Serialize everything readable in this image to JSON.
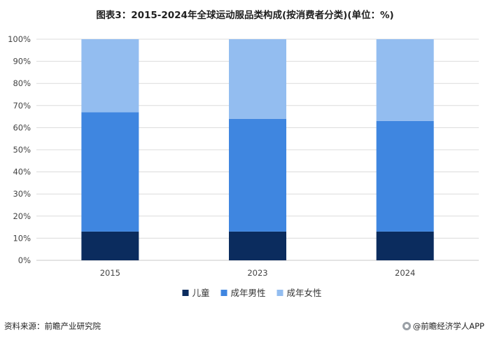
{
  "chart_data": {
    "type": "bar",
    "stacked": true,
    "title": "图表3：2015-2024年全球运动服品类构成(按消费者分类)(单位：%)",
    "categories": [
      "2015",
      "2023",
      "2024"
    ],
    "series": [
      {
        "name": "儿童",
        "values": [
          13,
          13,
          13
        ],
        "color": "#0b2c5e"
      },
      {
        "name": "成年男性",
        "values": [
          54,
          51,
          50
        ],
        "color": "#3f86e0"
      },
      {
        "name": "成年女性",
        "values": [
          33,
          36,
          37
        ],
        "color": "#93bdf0"
      }
    ],
    "ylim": [
      0,
      100
    ],
    "yticks": [
      "0%",
      "10%",
      "20%",
      "30%",
      "40%",
      "50%",
      "60%",
      "70%",
      "80%",
      "90%",
      "100%"
    ],
    "grid": true,
    "legend_position": "bottom"
  },
  "footer": {
    "source": "资料来源：前瞻产业研究院",
    "brand": "@前瞻经济学人APP"
  },
  "watermark": "前瞻产业研究院"
}
